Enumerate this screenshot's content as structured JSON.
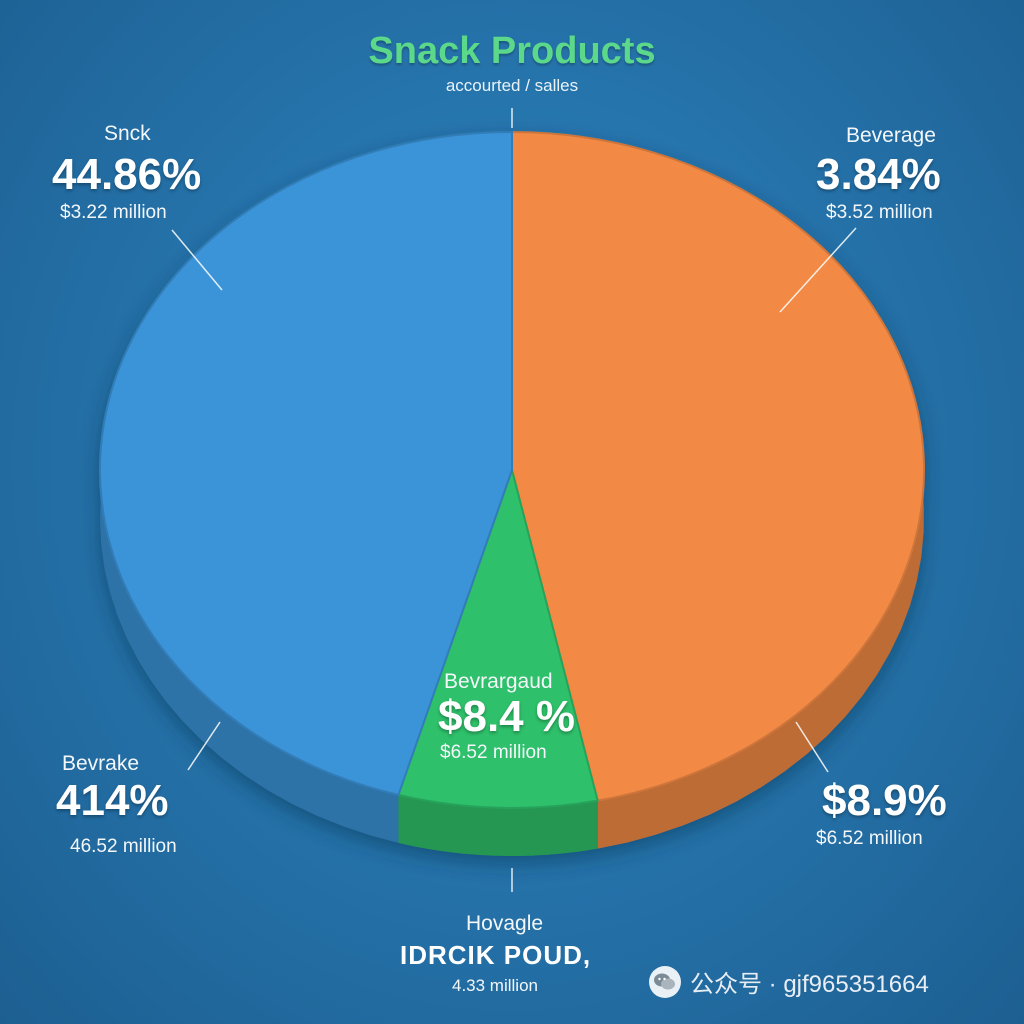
{
  "title": "Snack Products",
  "subtitle": "accourted / salles",
  "chart_data": {
    "type": "pie",
    "title": "Snack Products",
    "subtitle": "accourted / salles",
    "slices": [
      {
        "label": "Snck",
        "value_label": "44.86%",
        "amount": "$3.22 million",
        "value": 44.86,
        "color": "#3b93d8"
      },
      {
        "label": "Beverage",
        "value_label": "3.84%",
        "amount": "$3.52 million",
        "value": 3.84,
        "color": "#f28a45"
      },
      {
        "label": "Bevrargaud",
        "value_label": "$8.4 %",
        "amount": "$6.52 million",
        "value": 8.4,
        "color": "#2fc06a"
      }
    ],
    "annotations": [
      {
        "label": "Bevrake",
        "value_label": "414%",
        "amount": "46.52 million"
      },
      {
        "label": "",
        "value_label": "$8.9%",
        "amount": "$6.52 million"
      },
      {
        "label": "Hovagle",
        "value_label": "IDRCIK POUD,",
        "amount": "4.33 million"
      }
    ]
  },
  "labels": {
    "top_left": {
      "name": "Snck",
      "pct": "44.86%",
      "amount": "$3.22 million"
    },
    "top_right": {
      "name": "Beverage",
      "pct": "3.84%",
      "amount": "$3.52 million"
    },
    "center": {
      "name": "Bevrargaud",
      "pct": "$8.4 %",
      "amount": "$6.52 million"
    },
    "bottom_left": {
      "name": "Bevrake",
      "pct": "414%",
      "amount": "46.52 million"
    },
    "bottom_right": {
      "pct": "$8.9%",
      "amount": "$6.52 million"
    },
    "bottom": {
      "name": "Hovagle",
      "brand": "IDRCIK POUD,",
      "amount": "4.33 million"
    }
  },
  "watermark": {
    "text": "公众号 · gjf965351664",
    "icon": "wechat-icon"
  }
}
